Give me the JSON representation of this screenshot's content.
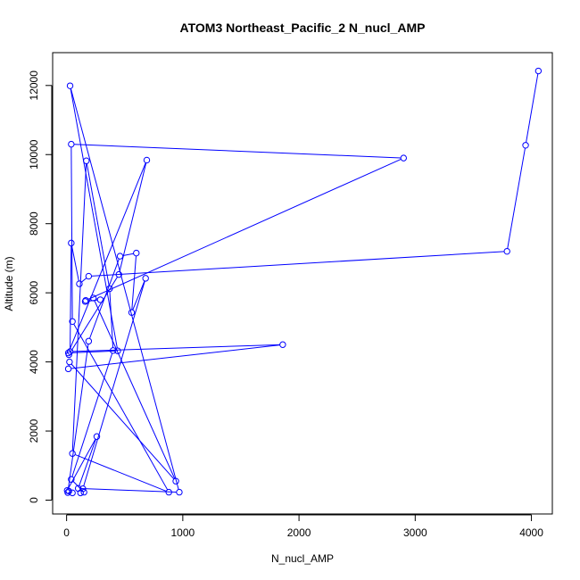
{
  "chart_data": {
    "type": "line",
    "title": "ATOM3 Northeast_Pacific_2 N_nucl_AMP",
    "xlabel": "N_nucl_AMP",
    "ylabel": "Altitude (m)",
    "xlim": [
      -120,
      4180
    ],
    "ylim": [
      -400,
      12950
    ],
    "xticks": [
      0,
      1000,
      2000,
      3000,
      4000
    ],
    "yticks": [
      0,
      2000,
      4000,
      6000,
      8000,
      10000,
      12000
    ],
    "grid": false,
    "legend": "none",
    "series_color": "#0000ff",
    "marker": "open-circle",
    "x": [
      4060,
      3950,
      3790,
      190,
      110,
      40,
      30,
      1860,
      15,
      25,
      940,
      230,
      290,
      160,
      165,
      2900,
      40,
      50,
      880,
      50,
      170,
      370,
      400,
      40,
      150,
      120,
      140,
      680,
      560,
      600,
      460,
      190,
      10,
      50,
      20,
      5,
      260,
      100,
      970,
      30,
      440,
      15,
      690,
      450,
      20
    ],
    "y": [
      12420,
      10270,
      7200,
      6480,
      6260,
      7440,
      4300,
      4500,
      3800,
      4000,
      550,
      5850,
      5800,
      5750,
      5780,
      9900,
      10300,
      5170,
      230,
      1350,
      9820,
      6120,
      4330,
      600,
      230,
      210,
      330,
      6420,
      5430,
      7150,
      7060,
      4600,
      220,
      210,
      260,
      280,
      1840,
      340,
      230,
      11990,
      4320,
      4260,
      9840,
      6530,
      4210
    ]
  }
}
